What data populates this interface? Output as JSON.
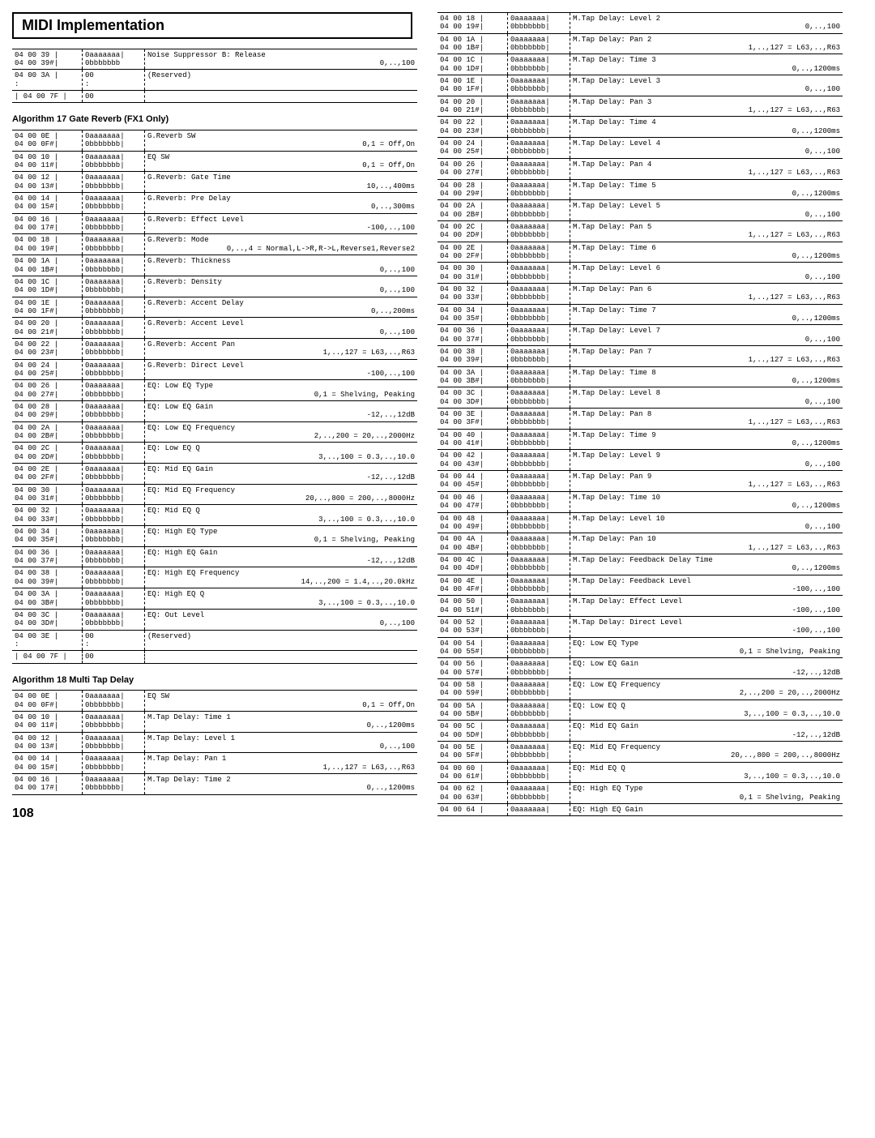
{
  "title": "MIDI Implementation",
  "page_number": "108",
  "top_table": [
    {
      "addr": "04 00 39 |\n04 00 39#|",
      "data": "0aaaaaaa|\n0bbbbbbb",
      "desc": "Noise Suppressor B: Release",
      "range": "0,..,100"
    },
    {
      "addr": "04 00 3A |\n:",
      "data": "00\n:",
      "desc": "(Reserved)",
      "range": ""
    },
    {
      "addr": "| 04 00 7F |",
      "data": "00",
      "desc": "",
      "range": ""
    }
  ],
  "algo17_title": "Algorithm 17  Gate Reverb (FX1 Only)",
  "algo17": [
    {
      "addr": "04 00 0E |\n04 00 0F#|",
      "data": "0aaaaaaa|\n0bbbbbbb|",
      "desc": "G.Reverb SW",
      "range": "0,1 = Off,On"
    },
    {
      "addr": "04 00 10 |\n04 00 11#|",
      "data": "0aaaaaaa|\n0bbbbbbb|",
      "desc": "EQ SW",
      "range": "0,1 = Off,On"
    },
    {
      "addr": "04 00 12 |\n04 00 13#|",
      "data": "0aaaaaaa|\n0bbbbbbb|",
      "desc": "G.Reverb: Gate Time",
      "range": "10,..,400ms"
    },
    {
      "addr": "04 00 14 |\n04 00 15#|",
      "data": "0aaaaaaa|\n0bbbbbbb|",
      "desc": "G.Reverb: Pre Delay",
      "range": "0,..,300ms"
    },
    {
      "addr": "04 00 16 |\n04 00 17#|",
      "data": "0aaaaaaa|\n0bbbbbbb|",
      "desc": "G.Reverb: Effect Level",
      "range": "-100,..,100"
    },
    {
      "addr": "04 00 18 |\n04 00 19#|",
      "data": "0aaaaaaa|\n0bbbbbbb|",
      "desc": "G.Reverb: Mode",
      "range": "0,..,4 = Normal,L->R,R->L,Reverse1,Reverse2"
    },
    {
      "addr": "04 00 1A |\n04 00 1B#|",
      "data": "0aaaaaaa|\n0bbbbbbb|",
      "desc": "G.Reverb: Thickness",
      "range": "0,..,100"
    },
    {
      "addr": "04 00 1C |\n04 00 1D#|",
      "data": "0aaaaaaa|\n0bbbbbbb|",
      "desc": "G.Reverb: Density",
      "range": "0,..,100"
    },
    {
      "addr": "04 00 1E |\n04 00 1F#|",
      "data": "0aaaaaaa|\n0bbbbbbb|",
      "desc": "G.Reverb: Accent Delay",
      "range": "0,..,200ms"
    },
    {
      "addr": "04 00 20 |\n04 00 21#|",
      "data": "0aaaaaaa|\n0bbbbbbb|",
      "desc": "G.Reverb: Accent Level",
      "range": "0,..,100"
    },
    {
      "addr": "04 00 22 |\n04 00 23#|",
      "data": "0aaaaaaa|\n0bbbbbbb|",
      "desc": "G.Reverb: Accent Pan",
      "range": "1,..,127 = L63,..,R63"
    },
    {
      "addr": "04 00 24 |\n04 00 25#|",
      "data": "0aaaaaaa|\n0bbbbbbb|",
      "desc": "G.Reverb: Direct Level",
      "range": "-100,..,100"
    },
    {
      "addr": "04 00 26 |\n04 00 27#|",
      "data": "0aaaaaaa|\n0bbbbbbb|",
      "desc": "EQ: Low EQ Type",
      "range": "0,1 = Shelving, Peaking"
    },
    {
      "addr": "04 00 28 |\n04 00 29#|",
      "data": "0aaaaaaa|\n0bbbbbbb|",
      "desc": "EQ: Low EQ Gain",
      "range": "-12,..,12dB"
    },
    {
      "addr": "04 00 2A |\n04 00 2B#|",
      "data": "0aaaaaaa|\n0bbbbbbb|",
      "desc": "EQ: Low EQ Frequency",
      "range": "2,..,200 = 20,..,2000Hz"
    },
    {
      "addr": "04 00 2C |\n04 00 2D#|",
      "data": "0aaaaaaa|\n0bbbbbbb|",
      "desc": "EQ: Low EQ Q",
      "range": "3,..,100 = 0.3,..,10.0"
    },
    {
      "addr": "04 00 2E |\n04 00 2F#|",
      "data": "0aaaaaaa|\n0bbbbbbb|",
      "desc": "EQ: Mid EQ Gain",
      "range": "-12,..,12dB"
    },
    {
      "addr": "04 00 30 |\n04 00 31#|",
      "data": "0aaaaaaa|\n0bbbbbbb|",
      "desc": "EQ: Mid EQ Frequency",
      "range": "20,..,800 = 200,..,8000Hz"
    },
    {
      "addr": "04 00 32 |\n04 00 33#|",
      "data": "0aaaaaaa|\n0bbbbbbb|",
      "desc": "EQ: Mid EQ Q",
      "range": "3,..,100 = 0.3,..,10.0"
    },
    {
      "addr": "04 00 34 |\n04 00 35#|",
      "data": "0aaaaaaa|\n0bbbbbbb|",
      "desc": "EQ: High EQ Type",
      "range": "0,1 = Shelving, Peaking"
    },
    {
      "addr": "04 00 36 |\n04 00 37#|",
      "data": "0aaaaaaa|\n0bbbbbbb|",
      "desc": "EQ: High EQ Gain",
      "range": "-12,..,12dB"
    },
    {
      "addr": "04 00 38 |\n04 00 39#|",
      "data": "0aaaaaaa|\n0bbbbbbb|",
      "desc": "EQ: High EQ Frequency",
      "range": "14,..,200 = 1.4,..,20.0kHz"
    },
    {
      "addr": "04 00 3A |\n04 00 3B#|",
      "data": "0aaaaaaa|\n0bbbbbbb|",
      "desc": "EQ: High EQ Q",
      "range": "3,..,100 = 0.3,..,10.0"
    },
    {
      "addr": "04 00 3C |\n04 00 3D#|",
      "data": "0aaaaaaa|\n0bbbbbbb|",
      "desc": "EQ: Out Level",
      "range": "0,..,100"
    },
    {
      "addr": "04 00 3E |\n:",
      "data": "00\n:",
      "desc": "(Reserved)",
      "range": ""
    },
    {
      "addr": "| 04 00 7F |",
      "data": "00",
      "desc": "",
      "range": ""
    }
  ],
  "algo18_title": "Algorithm 18  Multi Tap Delay",
  "algo18_left": [
    {
      "addr": "04 00 0E |\n04 00 0F#|",
      "data": "0aaaaaaa|\n0bbbbbbb|",
      "desc": "EQ SW",
      "range": "0,1 = Off,On"
    },
    {
      "addr": "04 00 10 |\n04 00 11#|",
      "data": "0aaaaaaa|\n0bbbbbbb|",
      "desc": "M.Tap Delay: Time 1",
      "range": "0,..,1200ms"
    },
    {
      "addr": "04 00 12 |\n04 00 13#|",
      "data": "0aaaaaaa|\n0bbbbbbb|",
      "desc": "M.Tap Delay: Level 1",
      "range": "0,..,100"
    },
    {
      "addr": "04 00 14 |\n04 00 15#|",
      "data": "0aaaaaaa|\n0bbbbbbb|",
      "desc": "M.Tap Delay: Pan 1",
      "range": "1,..,127 = L63,..,R63"
    },
    {
      "addr": "04 00 16 |\n04 00 17#|",
      "data": "0aaaaaaa|\n0bbbbbbb|",
      "desc": "M.Tap Delay: Time 2",
      "range": "0,..,1200ms"
    }
  ],
  "algo18_right": [
    {
      "addr": "04 00 18 |\n04 00 19#|",
      "data": "0aaaaaaa|\n0bbbbbbb|",
      "desc": "M.Tap Delay: Level 2",
      "range": "0,..,100"
    },
    {
      "addr": "04 00 1A |\n04 00 1B#|",
      "data": "0aaaaaaa|\n0bbbbbbb|",
      "desc": "M.Tap Delay: Pan 2",
      "range": "1,..,127 = L63,..,R63"
    },
    {
      "addr": "04 00 1C |\n04 00 1D#|",
      "data": "0aaaaaaa|\n0bbbbbbb|",
      "desc": "M.Tap Delay: Time 3",
      "range": "0,..,1200ms"
    },
    {
      "addr": "04 00 1E |\n04 00 1F#|",
      "data": "0aaaaaaa|\n0bbbbbbb|",
      "desc": "M.Tap Delay: Level 3",
      "range": "0,..,100"
    },
    {
      "addr": "04 00 20 |\n04 00 21#|",
      "data": "0aaaaaaa|\n0bbbbbbb|",
      "desc": "M.Tap Delay: Pan 3",
      "range": "1,..,127 = L63,..,R63"
    },
    {
      "addr": "04 00 22 |\n04 00 23#|",
      "data": "0aaaaaaa|\n0bbbbbbb|",
      "desc": "M.Tap Delay: Time 4",
      "range": "0,..,1200ms"
    },
    {
      "addr": "04 00 24 |\n04 00 25#|",
      "data": "0aaaaaaa|\n0bbbbbbb|",
      "desc": "M.Tap Delay: Level 4",
      "range": "0,..,100"
    },
    {
      "addr": "04 00 26 |\n04 00 27#|",
      "data": "0aaaaaaa|\n0bbbbbbb|",
      "desc": "M.Tap Delay: Pan 4",
      "range": "1,..,127 = L63,..,R63"
    },
    {
      "addr": "04 00 28 |\n04 00 29#|",
      "data": "0aaaaaaa|\n0bbbbbbb|",
      "desc": "M.Tap Delay: Time 5",
      "range": "0,..,1200ms"
    },
    {
      "addr": "04 00 2A |\n04 00 2B#|",
      "data": "0aaaaaaa|\n0bbbbbbb|",
      "desc": "M.Tap Delay: Level 5",
      "range": "0,..,100"
    },
    {
      "addr": "04 00 2C |\n04 00 2D#|",
      "data": "0aaaaaaa|\n0bbbbbbb|",
      "desc": "M.Tap Delay: Pan 5",
      "range": "1,..,127 = L63,..,R63"
    },
    {
      "addr": "04 00 2E |\n04 00 2F#|",
      "data": "0aaaaaaa|\n0bbbbbbb|",
      "desc": "M.Tap Delay: Time 6",
      "range": "0,..,1200ms"
    },
    {
      "addr": "04 00 30 |\n04 00 31#|",
      "data": "0aaaaaaa|\n0bbbbbbb|",
      "desc": "M.Tap Delay: Level 6",
      "range": "0,..,100"
    },
    {
      "addr": "04 00 32 |\n04 00 33#|",
      "data": "0aaaaaaa|\n0bbbbbbb|",
      "desc": "M.Tap Delay: Pan 6",
      "range": "1,..,127 = L63,..,R63"
    },
    {
      "addr": "04 00 34 |\n04 00 35#|",
      "data": "0aaaaaaa|\n0bbbbbbb|",
      "desc": "M.Tap Delay: Time 7",
      "range": "0,..,1200ms"
    },
    {
      "addr": "04 00 36 |\n04 00 37#|",
      "data": "0aaaaaaa|\n0bbbbbbb|",
      "desc": "M.Tap Delay: Level 7",
      "range": "0,..,100"
    },
    {
      "addr": "04 00 38 |\n04 00 39#|",
      "data": "0aaaaaaa|\n0bbbbbbb|",
      "desc": "M.Tap Delay: Pan 7",
      "range": "1,..,127 = L63,..,R63"
    },
    {
      "addr": "04 00 3A |\n04 00 3B#|",
      "data": "0aaaaaaa|\n0bbbbbbb|",
      "desc": "M.Tap Delay: Time 8",
      "range": "0,..,1200ms"
    },
    {
      "addr": "04 00 3C |\n04 00 3D#|",
      "data": "0aaaaaaa|\n0bbbbbbb|",
      "desc": "M.Tap Delay: Level 8",
      "range": "0,..,100"
    },
    {
      "addr": "04 00 3E |\n04 00 3F#|",
      "data": "0aaaaaaa|\n0bbbbbbb|",
      "desc": "M.Tap Delay: Pan 8",
      "range": "1,..,127 = L63,..,R63"
    },
    {
      "addr": "04 00 40 |\n04 00 41#|",
      "data": "0aaaaaaa|\n0bbbbbbb|",
      "desc": "M.Tap Delay: Time 9",
      "range": "0,..,1200ms"
    },
    {
      "addr": "04 00 42 |\n04 00 43#|",
      "data": "0aaaaaaa|\n0bbbbbbb|",
      "desc": "M.Tap Delay: Level 9",
      "range": "0,..,100"
    },
    {
      "addr": "04 00 44 |\n04 00 45#|",
      "data": "0aaaaaaa|\n0bbbbbbb|",
      "desc": "M.Tap Delay: Pan 9",
      "range": "1,..,127 = L63,..,R63"
    },
    {
      "addr": "04 00 46 |\n04 00 47#|",
      "data": "0aaaaaaa|\n0bbbbbbb|",
      "desc": "M.Tap Delay: Time 10",
      "range": "0,..,1200ms"
    },
    {
      "addr": "04 00 48 |\n04 00 49#|",
      "data": "0aaaaaaa|\n0bbbbbbb|",
      "desc": "M.Tap Delay: Level 10",
      "range": "0,..,100"
    },
    {
      "addr": "04 00 4A |\n04 00 4B#|",
      "data": "0aaaaaaa|\n0bbbbbbb|",
      "desc": "M.Tap Delay: Pan 10",
      "range": "1,..,127 = L63,..,R63"
    },
    {
      "addr": "04 00 4C |\n04 00 4D#|",
      "data": "0aaaaaaa|\n0bbbbbbb|",
      "desc": "M.Tap Delay: Feedback Delay Time",
      "range": "0,..,1200ms"
    },
    {
      "addr": "04 00 4E |\n04 00 4F#|",
      "data": "0aaaaaaa|\n0bbbbbbb|",
      "desc": "M.Tap Delay: Feedback Level",
      "range": "-100,..,100"
    },
    {
      "addr": "04 00 50 |\n04 00 51#|",
      "data": "0aaaaaaa|\n0bbbbbbb|",
      "desc": "M.Tap Delay: Effect Level",
      "range": "-100,..,100"
    },
    {
      "addr": "04 00 52 |\n04 00 53#|",
      "data": "0aaaaaaa|\n0bbbbbbb|",
      "desc": "M.Tap Delay: Direct Level",
      "range": "-100,..,100"
    },
    {
      "addr": "04 00 54 |\n04 00 55#|",
      "data": "0aaaaaaa|\n0bbbbbbb|",
      "desc": "EQ: Low EQ Type",
      "range": "0,1 = Shelving, Peaking"
    },
    {
      "addr": "04 00 56 |\n04 00 57#|",
      "data": "0aaaaaaa|\n0bbbbbbb|",
      "desc": "EQ: Low EQ Gain",
      "range": "-12,..,12dB"
    },
    {
      "addr": "04 00 58 |\n04 00 59#|",
      "data": "0aaaaaaa|\n0bbbbbbb|",
      "desc": "EQ: Low EQ Frequency",
      "range": "2,..,200 = 20,..,2000Hz"
    },
    {
      "addr": "04 00 5A |\n04 00 5B#|",
      "data": "0aaaaaaa|\n0bbbbbbb|",
      "desc": "EQ: Low EQ Q",
      "range": "3,..,100 = 0.3,..,10.0"
    },
    {
      "addr": "04 00 5C |\n04 00 5D#|",
      "data": "0aaaaaaa|\n0bbbbbbb|",
      "desc": "EQ: Mid EQ Gain",
      "range": "-12,..,12dB"
    },
    {
      "addr": "04 00 5E |\n04 00 5F#|",
      "data": "0aaaaaaa|\n0bbbbbbb|",
      "desc": "EQ: Mid EQ Frequency",
      "range": "20,..,800 = 200,..,8000Hz"
    },
    {
      "addr": "04 00 60 |\n04 00 61#|",
      "data": "0aaaaaaa|\n0bbbbbbb|",
      "desc": "EQ: Mid EQ Q",
      "range": "3,..,100 = 0.3,..,10.0"
    },
    {
      "addr": "04 00 62 |\n04 00 63#|",
      "data": "0aaaaaaa|\n0bbbbbbb|",
      "desc": "EQ: High EQ Type",
      "range": "0,1 = Shelving, Peaking"
    },
    {
      "addr": "04 00 64 |",
      "data": "0aaaaaaa|",
      "desc": "EQ: High EQ Gain",
      "range": ""
    }
  ]
}
